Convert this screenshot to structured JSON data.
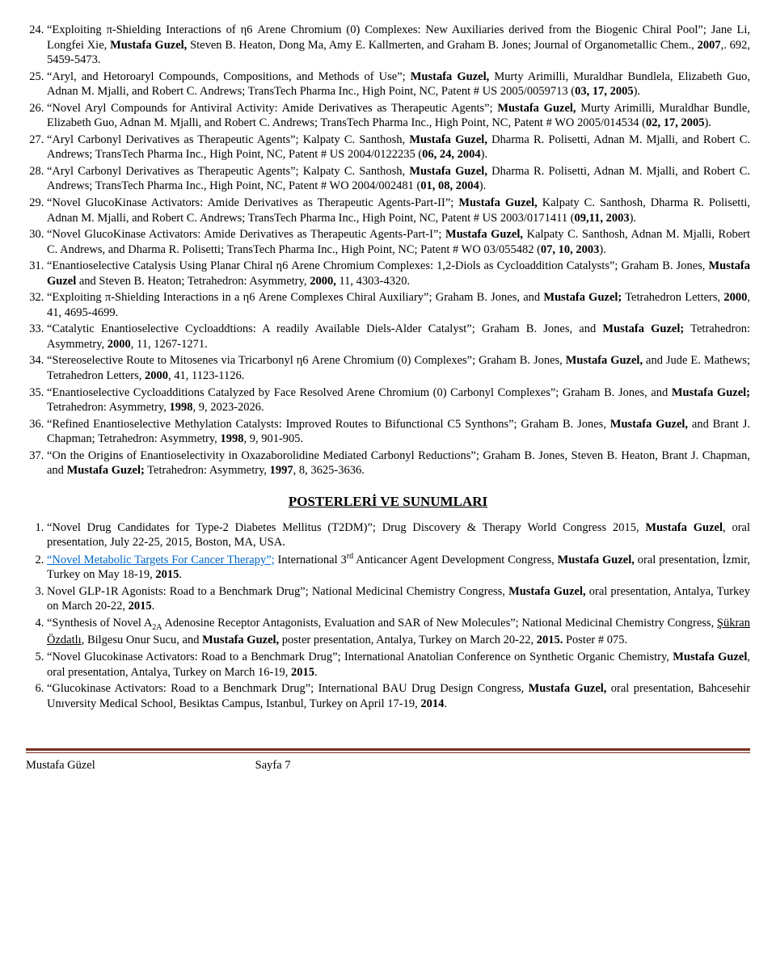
{
  "publications": [
    {
      "n": 24,
      "html": "“Exploiting π-Shielding Interactions of η6 Arene Chromium (0) Complexes: New Auxiliaries derived from the Biogenic Chiral Pool”; Jane Li, Longfei Xie, <span class=b>Mustafa Guzel,</span> Steven B. Heaton, Dong Ma, Amy E. Kallmerten, and Graham B. Jones; Journal of Organometallic Chem., <span class=b>2007</span>,. 692, 5459-5473."
    },
    {
      "n": 25,
      "html": "“Aryl, and Hetoroaryl Compounds, Compositions, and Methods of Use”; <span class=b>Mustafa Guzel,</span> Murty Arimilli, Muraldhar Bundlela, Elizabeth Guo, Adnan M. Mjalli, and Robert C. Andrews; TransTech Pharma Inc., High Point, NC, Patent # US 2005/0059713 (<span class=b>03, 17, 2005</span>)."
    },
    {
      "n": 26,
      "html": "“Novel Aryl Compounds for Antiviral Activity: Amide Derivatives as Therapeutic Agents”; <span class=b>Mustafa Guzel,</span> Murty Arimilli, Muraldhar Bundle, Elizabeth Guo, Adnan M. Mjalli, and Robert C. Andrews; TransTech Pharma Inc., High Point, NC, Patent # WO 2005/014534 (<span class=b>02, 17, 2005</span>)."
    },
    {
      "n": 27,
      "html": "“Aryl Carbonyl Derivatives as Therapeutic Agents”; Kalpaty C. Santhosh, <span class=b>Mustafa Guzel,</span> Dharma R. Polisetti, Adnan M. Mjalli, and Robert C. Andrews; TransTech Pharma Inc., High Point, NC, Patent # US 2004/0122235 (<span class=b>06, 24, 2004</span>)."
    },
    {
      "n": 28,
      "html": "“Aryl Carbonyl Derivatives as Therapeutic Agents”; Kalpaty C. Santhosh, <span class=b>Mustafa Guzel,</span> Dharma R. Polisetti, Adnan M. Mjalli, and Robert C. Andrews; TransTech Pharma Inc., High Point, NC, Patent # WO 2004/002481 (<span class=b>01, 08, 2004</span>)."
    },
    {
      "n": 29,
      "html": "“Novel GlucoKinase Activators: Amide Derivatives as Therapeutic Agents-Part-II”; <span class=b>Mustafa Guzel,</span> Kalpaty C. Santhosh, Dharma R. Polisetti, Adnan M. Mjalli, and Robert C. Andrews; TransTech Pharma Inc., High Point, NC, Patent # US 2003/0171411 (<span class=b>09,11, 2003</span>)."
    },
    {
      "n": 30,
      "html": "“Novel GlucoKinase Activators: Amide Derivatives as Therapeutic Agents-Part-I”; <span class=b>Mustafa Guzel,</span> Kalpaty C. Santhosh, Adnan M. Mjalli, Robert C. Andrews, and Dharma R. Polisetti; TransTech Pharma Inc., High Point, NC; Patent # WO 03/055482 (<span class=b>07, 10, 2003</span>)."
    },
    {
      "n": 31,
      "html": "“Enantioselective Catalysis Using Planar Chiral η6 Arene Chromium Complexes: 1,2-Diols as Cycloaddition Catalysts”; Graham B. Jones, <span class=b>Mustafa Guzel</span> and Steven B. Heaton; Tetrahedron: Asymmetry, <span class=b>2000,</span> 11, 4303-4320."
    },
    {
      "n": 32,
      "html": "“Exploiting π-Shielding Interactions in a η6 Arene Complexes Chiral Auxiliary”; Graham B. Jones, and <span class=b>Mustafa Guzel;</span> Tetrahedron Letters, <span class=b>2000</span>, 41, 4695-4699."
    },
    {
      "n": 33,
      "html": "“Catalytic Enantioselective Cycloaddtions: A readily Available Diels-Alder Catalyst”; Graham B. Jones, and <span class=b>Mustafa Guzel;</span> Tetrahedron: Asymmetry, <span class=b>2000</span>, 11, 1267-1271."
    },
    {
      "n": 34,
      "html": "“Stereoselective Route to Mitosenes via Tricarbonyl η6 Arene Chromium (0) Complexes”; Graham B. Jones, <span class=b>Mustafa Guzel,</span> and Jude E. Mathews; Tetrahedron Letters, <span class=b>2000</span>, 41, 1123-1126."
    },
    {
      "n": 35,
      "html": "“Enantioselective Cycloadditions Catalyzed by Face Resolved Arene Chromium (0) Carbonyl Complexes”; Graham B. Jones, and <span class=b>Mustafa Guzel;</span> Tetrahedron: Asymmetry, <span class=b>1998</span>, 9, 2023-2026."
    },
    {
      "n": 36,
      "html": "“Refined Enantioselective Methylation Catalysts: Improved Routes to Bifunctional C5 Synthons”; Graham B. Jones, <span class=b>Mustafa Guzel,</span> and Brant J. Chapman; Tetrahedron: Asymmetry, <span class=b>1998</span>, 9, 901-905."
    },
    {
      "n": 37,
      "html": "“On the Origins of Enantioselectivity in Oxazaborolidine Mediated Carbonyl Reductions”; Graham B. Jones, Steven B. Heaton, Brant J. Chapman, and <span class=b>Mustafa Guzel;</span> Tetrahedron: Asymmetry, <span class=b>1997</span>, 8, 3625-3636."
    }
  ],
  "section_heading": "POSTERLERİ VE SUNUMLARI",
  "posters": [
    {
      "n": 1,
      "html": " “Novel Drug Candidates for Type-2 Diabetes Mellitus (T2DM)”; Drug Discovery &amp; Therapy World Congress 2015, <span class=b>Mustafa Guzel</span>, oral presentation, July 22-25, 2015, Boston, MA, USA."
    },
    {
      "n": 2,
      "html": " <span class=link>“Novel Metabolic Targets For Cancer Therapy”;</span> International 3<span class=sup>rd</span> Anticancer Agent Development Congress, <span class=b>Mustafa Guzel,</span> oral presentation, İzmir, Turkey on May 18-19, <span class=b>2015</span>."
    },
    {
      "n": 3,
      "html": " Novel GLP-1R Agonists: Road to a Benchmark Drug”; National Medicinal Chemistry Congress, <span class=b>Mustafa Guzel,</span> oral presentation, Antalya, Turkey on March 20-22, <span class=b>2015</span>."
    },
    {
      "n": 4,
      "html": " “Synthesis of Novel A<span class=sub>2A</span> Adenosine Receptor Antagonists, Evaluation and SAR of New Molecules”; National Medicinal Chemistry Congress, <span class=uline>Şükran Özdatlı</span>, Bilgesu Onur Sucu, and <span class=b>Mustafa Guzel,</span> poster presentation, Antalya, Turkey on March 20-22, <span class=b>2015.</span> Poster # 075."
    },
    {
      "n": 5,
      "html": " “Novel Glucokinase Activators: Road to a Benchmark Drug”; International Anatolian Conference on Synthetic Organic Chemistry, <span class=b>Mustafa Guzel</span>, oral presentation, Antalya, Turkey on March 16-19, <span class=b>2015</span>."
    },
    {
      "n": 6,
      "html": " “Glucokinase Activators: Road to a Benchmark Drug”; International BAU Drug Design Congress, <span class=b>Mustafa Guzel,</span> oral presentation, Bahcesehir Unıversity Medical School, Besiktas Campus, Istanbul, Turkey on April 17-19, <span class=b>2014</span>."
    }
  ],
  "footer": {
    "name": "Mustafa Güzel",
    "page": "Sayfa 7"
  }
}
